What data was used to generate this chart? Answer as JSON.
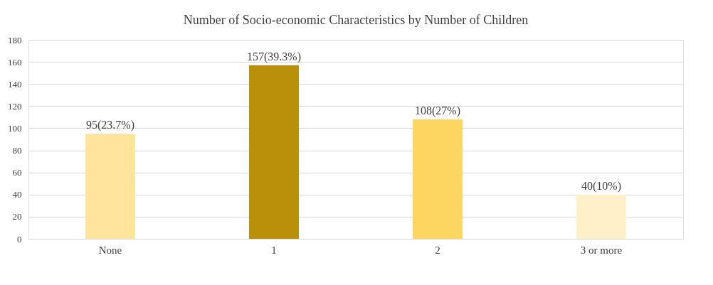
{
  "chart_data": {
    "type": "bar",
    "title": "Number of Socio-economic Characteristics by Number of Children",
    "categories": [
      "None",
      "1",
      "2",
      "3 or more"
    ],
    "values": [
      95,
      157,
      108,
      40
    ],
    "colors": [
      "#fee59b",
      "#b8900a",
      "#fcd660",
      "#fff0c9"
    ],
    "value_labels": [
      "95(23.7%)",
      "157(39.3%)",
      "108(27%)",
      "40(10%)"
    ],
    "ylim": [
      0,
      180
    ],
    "yticks": [
      0,
      20,
      40,
      60,
      80,
      100,
      120,
      140,
      160,
      180
    ],
    "grid": "y",
    "legend": false
  }
}
